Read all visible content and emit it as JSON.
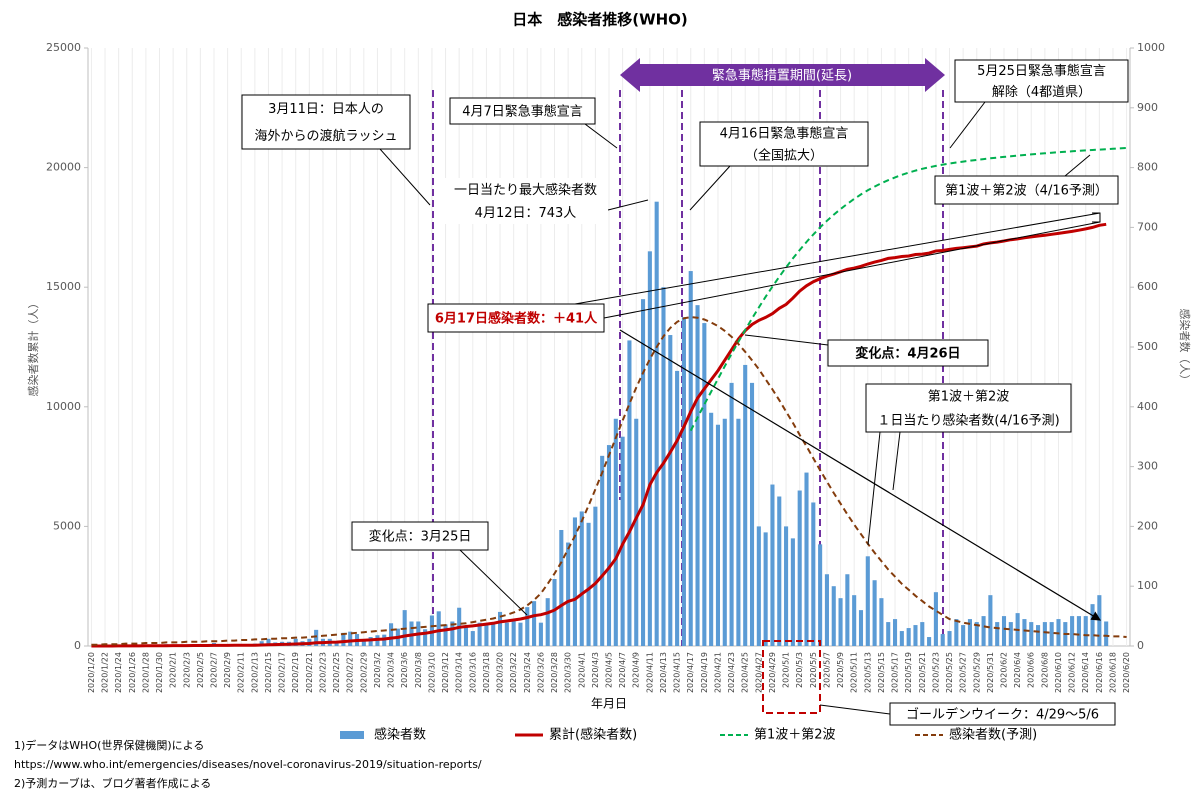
{
  "chart_data": {
    "type": "combo",
    "title": "日本　感染者推移(WHO)",
    "y_label": "感染者数累計（人）",
    "y2_label": "感染者数（人）",
    "x_label": "年月日",
    "legend": "bottom",
    "ylim": [
      0,
      25000
    ],
    "yticks": [
      0,
      5000,
      10000,
      15000,
      20000,
      25000
    ],
    "y2lim": [
      0,
      1000
    ],
    "y2ticks": [
      0,
      100,
      200,
      300,
      400,
      500,
      600,
      700,
      800,
      900,
      1000
    ],
    "categories": [
      "2020/1/20",
      null,
      "2020/1/22",
      null,
      "2020/1/24",
      null,
      "2020/1/26",
      null,
      "2020/1/28",
      null,
      "2020/1/30",
      null,
      "2020/2/1",
      null,
      "2020/2/3",
      null,
      "2020/2/5",
      null,
      "2020/2/7",
      null,
      "2020/2/9",
      null,
      "2020/2/11",
      null,
      "2020/2/13",
      null,
      "2020/2/15",
      null,
      "2020/2/17",
      null,
      "2020/2/19",
      null,
      "2020/2/21",
      null,
      "2020/2/23",
      null,
      "2020/2/25",
      null,
      "2020/2/27",
      null,
      "2020/2/29",
      null,
      "2020/3/2",
      null,
      "2020/3/4",
      null,
      "2020/3/6",
      null,
      "2020/3/8",
      null,
      "2020/3/10",
      null,
      "2020/3/12",
      null,
      "2020/3/14",
      null,
      "2020/3/16",
      null,
      "2020/3/18",
      null,
      "2020/3/20",
      null,
      "2020/3/22",
      null,
      "2020/3/24",
      null,
      "2020/3/26",
      null,
      "2020/3/28",
      null,
      "2020/3/30",
      null,
      "2020/4/1",
      null,
      "2020/4/3",
      null,
      "2020/4/5",
      null,
      "2020/4/7",
      null,
      "2020/4/9",
      null,
      "2020/4/11",
      null,
      "2020/4/13",
      null,
      "2020/4/15",
      null,
      "2020/4/17",
      null,
      "2020/4/19",
      null,
      "2020/4/21",
      null,
      "2020/4/23",
      null,
      "2020/4/25",
      null,
      "2020/4/27",
      null,
      "2020/4/29",
      null,
      "2020/5/1",
      null,
      "2020/5/3",
      null,
      "2020/5/5",
      null,
      "2020/5/7",
      null,
      "2020/5/9",
      null,
      "2020/5/11",
      null,
      "2020/5/13",
      null,
      "2020/5/15",
      null,
      "2020/5/17",
      null,
      "2020/5/19",
      null,
      "2020/5/21",
      null,
      "2020/5/23",
      null,
      "2020/5/25",
      null,
      "2020/5/27",
      null,
      "2020/5/29",
      null,
      "2020/5/31",
      null,
      "2020/6/2",
      null,
      "2020/6/4",
      null,
      "2020/6/6",
      null,
      "2020/6/8",
      null,
      "2020/6/10",
      null,
      "2020/6/12",
      null,
      "2020/6/14",
      null,
      "2020/6/16",
      null,
      "2020/6/18",
      null,
      "2020/6/20"
    ],
    "series": [
      {
        "name": "感染者数",
        "style": "bar",
        "axis": "y2",
        "color": "#5b9bd5",
        "values": [
          0,
          0,
          1,
          0,
          0,
          1,
          1,
          1,
          1,
          2,
          2,
          3,
          1,
          1,
          1,
          3,
          0,
          0,
          5,
          0,
          1,
          2,
          1,
          0,
          4,
          8,
          12,
          6,
          7,
          7,
          12,
          8,
          12,
          27,
          12,
          12,
          8,
          22,
          24,
          20,
          11,
          15,
          18,
          19,
          38,
          29,
          60,
          41,
          41,
          28,
          51,
          58,
          36,
          41,
          64,
          34,
          25,
          39,
          36,
          36,
          57,
          39,
          43,
          39,
          65,
          75,
          39,
          80,
          112,
          194,
          173,
          215,
          225,
          206,
          233,
          318,
          336,
          380,
          350,
          511,
          380,
          580,
          660,
          743,
          600,
          520,
          460,
          550,
          627,
          570,
          540,
          390,
          370,
          380,
          440,
          380,
          470,
          440,
          200,
          190,
          270,
          250,
          200,
          180,
          260,
          290,
          240,
          170,
          120,
          100,
          80,
          120,
          85,
          60,
          150,
          110,
          80,
          40,
          45,
          25,
          30,
          35,
          40,
          15,
          90,
          20,
          25,
          45,
          35,
          45,
          40,
          50,
          85,
          40,
          50,
          40,
          55,
          45,
          40,
          35,
          40,
          40,
          45,
          40,
          50,
          50,
          50,
          70,
          85,
          41,
          null,
          null,
          null
        ]
      },
      {
        "name": "累計(感染者数)",
        "style": "line",
        "axis": "y",
        "color": "#c00000",
        "values": [
          1,
          1,
          2,
          2,
          3,
          4,
          5,
          6,
          7,
          9,
          11,
          14,
          15,
          16,
          17,
          20,
          20,
          20,
          25,
          25,
          26,
          28,
          29,
          29,
          33,
          41,
          53,
          59,
          66,
          73,
          85,
          93,
          105,
          132,
          144,
          156,
          164,
          186,
          210,
          230,
          241,
          256,
          274,
          293,
          331,
          360,
          420,
          461,
          502,
          530,
          581,
          639,
          675,
          716,
          780,
          814,
          839,
          878,
          914,
          950,
          1007,
          1046,
          1089,
          1128,
          1193,
          1268,
          1307,
          1387,
          1499,
          1693,
          1866,
          1953,
          2178,
          2384,
          2617,
          2935,
          3271,
          3654,
          4257,
          4768,
          5347,
          5911,
          6748,
          7255,
          7645,
          8100,
          8582,
          9167,
          9795,
          10361,
          10751,
          11135,
          11512,
          11950,
          12388,
          12829,
          13182,
          13441,
          13614,
          13736,
          13895,
          14119,
          14281,
          14544,
          14839,
          15057,
          15231,
          15354,
          15463,
          15547,
          15649,
          15747,
          15798,
          15874,
          15968,
          16049,
          16120,
          16203,
          16237,
          16285,
          16305,
          16367,
          16385,
          16424,
          16513,
          16536,
          16581,
          16623,
          16651,
          16683,
          16719,
          16804,
          16851,
          16884,
          16930,
          16986,
          17018,
          17064,
          17103,
          17141,
          17174,
          17210,
          17251,
          17292,
          17332,
          17382,
          17439,
          17502,
          17587,
          17628,
          null,
          null,
          null
        ]
      },
      {
        "name": "第1波＋第2波",
        "style": "line",
        "dash": true,
        "axis": "y",
        "color": "#00b050",
        "values": [
          null,
          null,
          null,
          null,
          null,
          null,
          null,
          null,
          null,
          null,
          null,
          null,
          null,
          null,
          null,
          null,
          null,
          null,
          null,
          null,
          null,
          null,
          null,
          null,
          null,
          null,
          null,
          null,
          null,
          null,
          null,
          null,
          null,
          null,
          null,
          null,
          null,
          null,
          null,
          null,
          null,
          null,
          null,
          null,
          null,
          null,
          null,
          null,
          null,
          null,
          null,
          null,
          null,
          null,
          null,
          null,
          null,
          null,
          null,
          null,
          null,
          null,
          null,
          null,
          null,
          null,
          null,
          null,
          null,
          null,
          null,
          null,
          null,
          null,
          null,
          null,
          null,
          null,
          null,
          null,
          null,
          null,
          null,
          null,
          null,
          null,
          null,
          null,
          9000,
          9549,
          10095,
          10636,
          11171,
          11698,
          12215,
          12720,
          13212,
          13690,
          14153,
          14599,
          15028,
          15439,
          15831,
          16204,
          16557,
          16891,
          17205,
          17499,
          17774,
          18030,
          18268,
          18488,
          18691,
          18878,
          19049,
          19205,
          19347,
          19475,
          19591,
          19695,
          19789,
          19873,
          19948,
          20014,
          20073,
          20125,
          20170,
          20212,
          20251,
          20288,
          20323,
          20356,
          20387,
          20417,
          20446,
          20474,
          20501,
          20527,
          20552,
          20576,
          20599,
          20621,
          20642,
          20662,
          20682,
          20701,
          20719,
          20737,
          20754,
          20771,
          20787,
          20803,
          20818
        ]
      },
      {
        "name": "感染者数(予測)",
        "style": "line",
        "dash": true,
        "axis": "y2",
        "color": "#843c0c",
        "values": [
          2,
          2,
          3,
          3,
          3,
          4,
          4,
          4,
          5,
          5,
          5,
          6,
          6,
          6,
          7,
          7,
          7,
          8,
          8,
          8,
          9,
          9,
          10,
          10,
          11,
          11,
          12,
          12,
          13,
          13,
          14,
          14,
          15,
          16,
          17,
          18,
          19,
          20,
          21,
          22,
          23,
          24,
          25,
          26,
          27,
          28,
          29,
          30,
          31,
          32,
          33,
          34,
          35,
          36,
          37,
          38,
          40,
          42,
          44,
          46,
          49,
          52,
          56,
          61,
          68,
          77,
          88,
          104,
          121,
          140,
          162,
          184,
          209,
          235,
          262,
          290,
          319,
          348,
          377,
          405,
          432,
          457,
          480,
          500,
          518,
          532,
          542,
          548,
          550,
          549,
          546,
          541,
          535,
          527,
          517,
          505,
          492,
          478,
          463,
          446,
          429,
          411,
          392,
          373,
          353,
          334,
          314,
          294,
          275,
          256,
          238,
          220,
          203,
          187,
          171,
          156,
          142,
          128,
          116,
          104,
          94,
          84,
          75,
          66,
          59,
          52,
          45,
          42,
          39,
          37,
          35,
          33,
          31,
          30,
          29,
          28,
          27,
          26,
          25,
          24,
          23,
          22,
          21,
          20,
          20,
          19,
          18,
          18,
          17,
          17,
          16,
          16,
          15
        ]
      }
    ],
    "banner": "緊急事態措置期間(延長)",
    "annotations": [
      [
        "3月11日：日本人の",
        "海外からの渡航ラッシュ"
      ],
      [
        "4月7日緊急事態宣言"
      ],
      [
        "4月16日緊急事態宣言",
        "（全国拡大）"
      ],
      [
        "5月25日緊急事態宣言",
        "解除（4都道県）"
      ],
      [
        "一日当たり最大感染者数",
        "4月12日：743人"
      ],
      [
        "第1波＋第2波（4/16予測）"
      ],
      [
        "6月17日感染者数：＋41人"
      ],
      [
        "変化点：4月26日"
      ],
      [
        "第1波＋第2波",
        "１日当たり感染者数(4/16予測)"
      ],
      [
        "変化点：3月25日"
      ],
      [
        "ゴールデンウイーク：4/29～5/6"
      ]
    ],
    "notes": [
      "1)データはWHO(世界保健機関)による",
      "https://www.who.int/emergencies/diseases/novel-coronavirus-2019/situation-reports/",
      "2)予測カーブは、ブログ著者作成による"
    ]
  }
}
